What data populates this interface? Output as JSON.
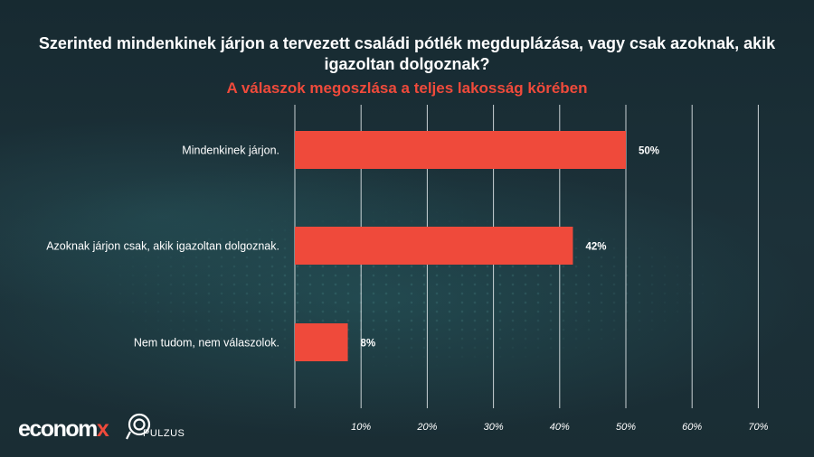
{
  "title": "Szerinted mindenkinek járjon a tervezett családi pótlék megduplázása, vagy csak azoknak, akik igazoltan dolgoznak?",
  "subtitle": "A válaszok megoszlása a teljes lakosság körében",
  "logos": {
    "economx_main": "econom",
    "economx_accent": "x",
    "pulzus": "PULZUS"
  },
  "colors": {
    "bar": "#ef4a3b",
    "accent": "#ef4a3b",
    "text": "#ffffff",
    "grid": "#e8eef0"
  },
  "chart_data": {
    "type": "bar",
    "orientation": "horizontal",
    "title": "Szerinted mindenkinek járjon a tervezett családi pótlék megduplázása, vagy csak azoknak, akik igazoltan dolgoznak?",
    "subtitle": "A válaszok megoszlása a teljes lakosság körében",
    "categories": [
      "Mindenkinek járjon.",
      "Azoknak járjon csak, akik igazoltan dolgoznak.",
      "Nem tudom, nem válaszolok."
    ],
    "values": [
      50,
      42,
      8
    ],
    "data_labels": [
      "50%",
      "42%",
      "8%"
    ],
    "xlim": [
      0,
      70
    ],
    "ticks": [
      10,
      20,
      30,
      40,
      50,
      60,
      70
    ],
    "tick_labels": [
      "10%",
      "20%",
      "30%",
      "40%",
      "50%",
      "60%",
      "70%"
    ],
    "grid": true,
    "legend": "none"
  }
}
